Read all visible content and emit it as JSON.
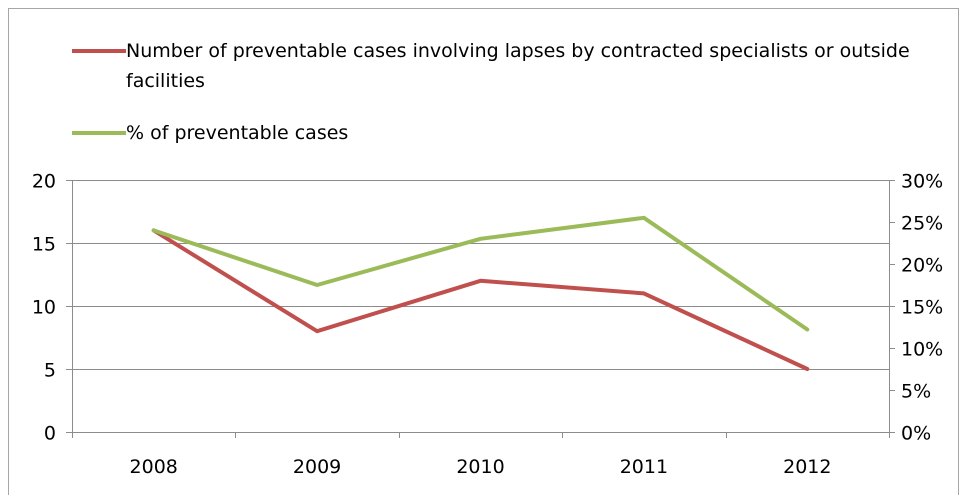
{
  "chart_data": {
    "type": "line",
    "categories": [
      "2008",
      "2009",
      "2010",
      "2011",
      "2012"
    ],
    "series": [
      {
        "name": "Number of preventable cases involving lapses by contracted specialists or outside facilities",
        "axis": "left",
        "color": "#c0504d",
        "values": [
          16,
          8,
          12,
          11,
          5
        ]
      },
      {
        "name": "% of preventable cases",
        "axis": "right",
        "color": "#9bbb59",
        "values": [
          24,
          17.5,
          23,
          25.5,
          12.2
        ]
      }
    ],
    "y_left": {
      "min": 0,
      "max": 20,
      "ticks": [
        "0",
        "5",
        "10",
        "15",
        "20"
      ]
    },
    "y_right": {
      "min": 0,
      "max": 30,
      "ticks": [
        "0%",
        "5%",
        "10%",
        "15%",
        "20%",
        "25%",
        "30%"
      ]
    },
    "grid": true,
    "legend_position": "top"
  }
}
